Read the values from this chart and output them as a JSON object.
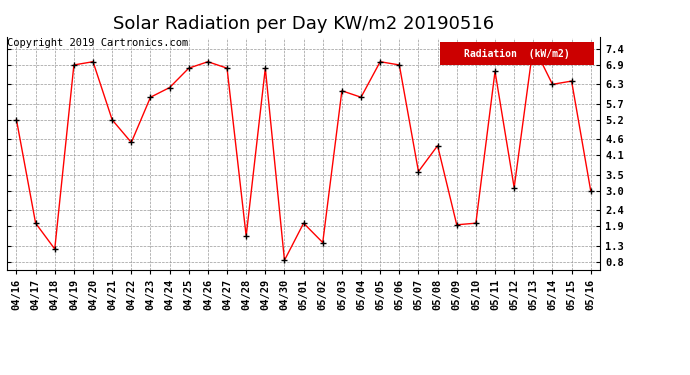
{
  "title": "Solar Radiation per Day KW/m2 20190516",
  "copyright": "Copyright 2019 Cartronics.com",
  "legend_label": "Radiation  (kW/m2)",
  "dates": [
    "04/16",
    "04/17",
    "04/18",
    "04/19",
    "04/20",
    "04/21",
    "04/22",
    "04/23",
    "04/24",
    "04/25",
    "04/26",
    "04/27",
    "04/28",
    "04/29",
    "04/30",
    "05/01",
    "05/02",
    "05/03",
    "05/04",
    "05/05",
    "05/06",
    "05/07",
    "05/08",
    "05/09",
    "05/10",
    "05/11",
    "05/12",
    "05/13",
    "05/14",
    "05/15",
    "05/16"
  ],
  "values": [
    5.2,
    2.0,
    1.2,
    6.9,
    7.0,
    5.2,
    4.5,
    5.9,
    6.2,
    6.8,
    7.0,
    6.8,
    1.6,
    6.8,
    0.85,
    2.0,
    1.4,
    6.1,
    5.9,
    7.0,
    6.9,
    3.6,
    4.4,
    1.95,
    2.0,
    6.7,
    3.1,
    7.5,
    6.3,
    6.4,
    3.0
  ],
  "line_color": "red",
  "marker_color": "black",
  "bg_color": "#ffffff",
  "plot_bg_color": "#ffffff",
  "grid_color": "#999999",
  "yticks": [
    0.8,
    1.3,
    1.9,
    2.4,
    3.0,
    3.5,
    4.1,
    4.6,
    5.2,
    5.7,
    6.3,
    6.9,
    7.4
  ],
  "ylim": [
    0.55,
    7.75
  ],
  "legend_bg": "#cc0000",
  "legend_text_color": "#ffffff",
  "title_fontsize": 13,
  "tick_fontsize": 7.5,
  "copyright_fontsize": 7.5
}
